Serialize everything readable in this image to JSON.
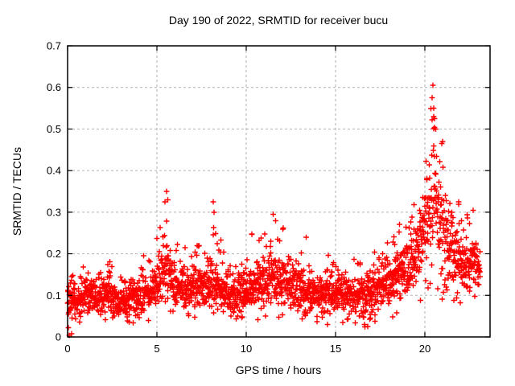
{
  "chart_data": {
    "type": "scatter",
    "title": "Day 190 of 2022, SRMTID for receiver bucu",
    "xlabel": "GPS time / hours",
    "ylabel": "SRMTID / TECUs",
    "xlim": [
      0,
      23.65
    ],
    "ylim": [
      0,
      0.7
    ],
    "xticks": [
      0,
      5,
      10,
      15,
      20
    ],
    "xtick_labels": [
      "0",
      "5",
      "10",
      "15",
      "20"
    ],
    "yticks": [
      0,
      0.1,
      0.2,
      0.3,
      0.4,
      0.5,
      0.6,
      0.7
    ],
    "ytick_labels": [
      "0",
      "0.1",
      "0.2",
      "0.3",
      "0.4",
      "0.5",
      "0.6",
      "0.7"
    ],
    "grid": true,
    "legend": "none",
    "marker": "plus-cross",
    "marker_color": "#ff0000",
    "data_start_hour": 0.0,
    "data_end_hour": 23.1,
    "approx_point_count": 2300,
    "density_profile_columns": [
      "hour",
      "low_envelope",
      "median",
      "high_envelope"
    ],
    "density_profile": [
      [
        0.0,
        0.02,
        0.09,
        0.18
      ],
      [
        0.3,
        0.05,
        0.1,
        0.17
      ],
      [
        0.6,
        0.04,
        0.08,
        0.14
      ],
      [
        1.0,
        0.05,
        0.1,
        0.19
      ],
      [
        1.3,
        0.05,
        0.11,
        0.2
      ],
      [
        1.6,
        0.05,
        0.09,
        0.16
      ],
      [
        2.0,
        0.04,
        0.09,
        0.17
      ],
      [
        2.4,
        0.05,
        0.1,
        0.19
      ],
      [
        2.8,
        0.04,
        0.08,
        0.15
      ],
      [
        3.2,
        0.04,
        0.08,
        0.14
      ],
      [
        3.6,
        0.04,
        0.09,
        0.16
      ],
      [
        4.0,
        0.05,
        0.1,
        0.18
      ],
      [
        4.5,
        0.05,
        0.1,
        0.22
      ],
      [
        5.0,
        0.06,
        0.11,
        0.25
      ],
      [
        5.4,
        0.07,
        0.15,
        0.33
      ],
      [
        5.6,
        0.08,
        0.16,
        0.35
      ],
      [
        5.9,
        0.07,
        0.13,
        0.28
      ],
      [
        6.2,
        0.06,
        0.11,
        0.22
      ],
      [
        6.6,
        0.06,
        0.11,
        0.23
      ],
      [
        7.0,
        0.06,
        0.11,
        0.2
      ],
      [
        7.4,
        0.06,
        0.12,
        0.24
      ],
      [
        7.8,
        0.07,
        0.13,
        0.28
      ],
      [
        8.1,
        0.06,
        0.13,
        0.32
      ],
      [
        8.4,
        0.06,
        0.12,
        0.25
      ],
      [
        8.8,
        0.05,
        0.1,
        0.22
      ],
      [
        9.2,
        0.05,
        0.1,
        0.18
      ],
      [
        9.6,
        0.04,
        0.1,
        0.19
      ],
      [
        10.0,
        0.06,
        0.11,
        0.22
      ],
      [
        10.5,
        0.06,
        0.12,
        0.28
      ],
      [
        11.0,
        0.06,
        0.13,
        0.26
      ],
      [
        11.5,
        0.07,
        0.14,
        0.3
      ],
      [
        12.0,
        0.06,
        0.13,
        0.27
      ],
      [
        12.5,
        0.05,
        0.12,
        0.22
      ],
      [
        13.0,
        0.05,
        0.11,
        0.23
      ],
      [
        13.4,
        0.04,
        0.1,
        0.24
      ],
      [
        13.8,
        0.05,
        0.1,
        0.2
      ],
      [
        14.2,
        0.05,
        0.1,
        0.19
      ],
      [
        14.6,
        0.04,
        0.1,
        0.21
      ],
      [
        15.0,
        0.06,
        0.1,
        0.17
      ],
      [
        15.5,
        0.05,
        0.1,
        0.16
      ],
      [
        16.0,
        0.05,
        0.1,
        0.22
      ],
      [
        16.5,
        0.04,
        0.09,
        0.18
      ],
      [
        16.9,
        0.03,
        0.1,
        0.2
      ],
      [
        17.3,
        0.06,
        0.11,
        0.22
      ],
      [
        17.7,
        0.07,
        0.12,
        0.23
      ],
      [
        18.1,
        0.07,
        0.13,
        0.24
      ],
      [
        18.5,
        0.08,
        0.15,
        0.27
      ],
      [
        19.0,
        0.09,
        0.16,
        0.3
      ],
      [
        19.4,
        0.11,
        0.19,
        0.34
      ],
      [
        19.8,
        0.13,
        0.23,
        0.42
      ],
      [
        20.1,
        0.16,
        0.29,
        0.5
      ],
      [
        20.4,
        0.18,
        0.33,
        0.57
      ],
      [
        20.7,
        0.17,
        0.32,
        0.53
      ],
      [
        21.0,
        0.13,
        0.26,
        0.46
      ],
      [
        21.3,
        0.12,
        0.22,
        0.38
      ],
      [
        21.6,
        0.1,
        0.19,
        0.34
      ],
      [
        21.9,
        0.09,
        0.18,
        0.36
      ],
      [
        22.2,
        0.08,
        0.16,
        0.3
      ],
      [
        22.6,
        0.09,
        0.17,
        0.3
      ],
      [
        23.0,
        0.1,
        0.16,
        0.26
      ],
      [
        23.1,
        0.11,
        0.16,
        0.24
      ]
    ],
    "notable_points": [
      [
        0.08,
        0.004
      ],
      [
        0.22,
        0.008
      ],
      [
        5.55,
        0.35
      ],
      [
        5.6,
        0.33
      ],
      [
        8.15,
        0.325
      ],
      [
        8.2,
        0.3
      ],
      [
        11.5,
        0.295
      ],
      [
        13.35,
        0.24
      ],
      [
        14.55,
        0.03
      ],
      [
        16.8,
        0.025
      ],
      [
        16.95,
        0.045
      ],
      [
        20.45,
        0.605
      ],
      [
        20.4,
        0.575
      ],
      [
        20.5,
        0.55
      ],
      [
        20.5,
        0.53
      ],
      [
        20.55,
        0.525
      ],
      [
        20.6,
        0.5
      ],
      [
        21.0,
        0.47
      ],
      [
        22.7,
        0.305
      ]
    ]
  },
  "colors": {
    "marker": "#ff0000",
    "grid": "#b0b0b0",
    "frame": "#000000",
    "background": "#ffffff",
    "text": "#000000"
  }
}
